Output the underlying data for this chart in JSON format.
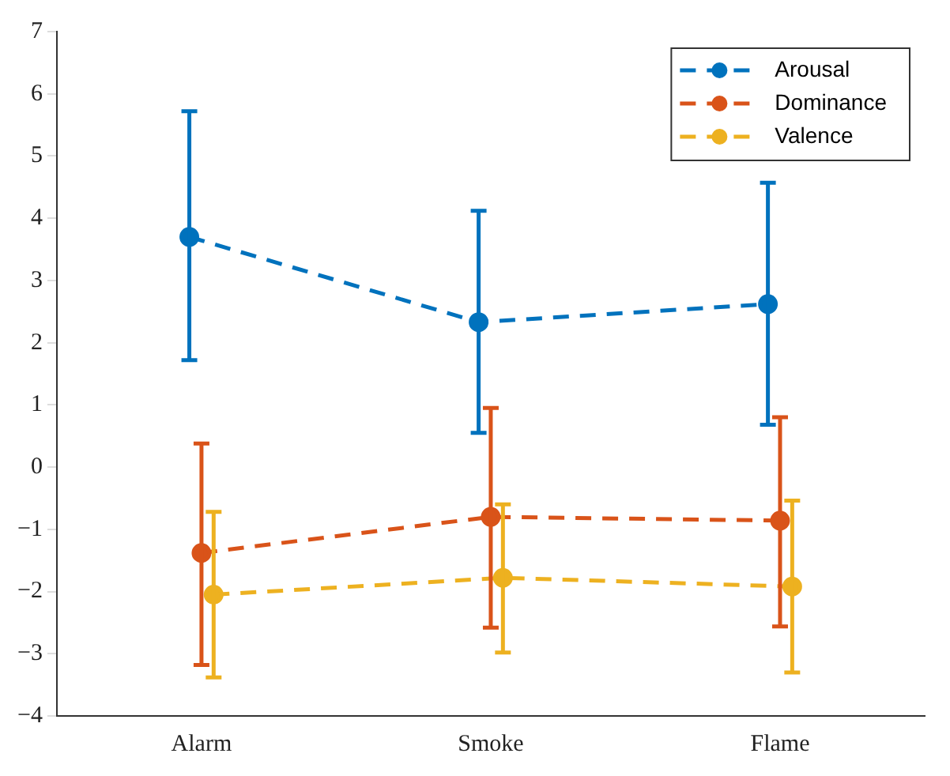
{
  "chart_data": {
    "type": "line",
    "categories": [
      "Alarm",
      "Smoke",
      "Flame"
    ],
    "ylim": [
      -4,
      7
    ],
    "yticks": [
      -4,
      -3,
      -2,
      -1,
      0,
      1,
      2,
      3,
      4,
      5,
      6,
      7
    ],
    "series": [
      {
        "name": "Arousal",
        "color": "#0072bd",
        "values": [
          3.7,
          2.33,
          2.62
        ],
        "errors": [
          [
            1.72,
            5.72
          ],
          [
            0.55,
            4.12
          ],
          [
            0.68,
            4.57
          ]
        ]
      },
      {
        "name": "Dominance",
        "color": "#d95319",
        "values": [
          -1.38,
          -0.8,
          -0.86
        ],
        "errors": [
          [
            -3.18,
            0.38
          ],
          [
            -2.58,
            0.95
          ],
          [
            -2.56,
            0.8
          ]
        ]
      },
      {
        "name": "Valence",
        "color": "#edb120",
        "values": [
          -2.05,
          -1.78,
          -1.92
        ],
        "errors": [
          [
            -3.38,
            -0.72
          ],
          [
            -2.98,
            -0.6
          ],
          [
            -3.3,
            -0.54
          ]
        ]
      }
    ],
    "legend": "top right",
    "grid": false,
    "marker": "circle",
    "line_style": "dashed"
  }
}
